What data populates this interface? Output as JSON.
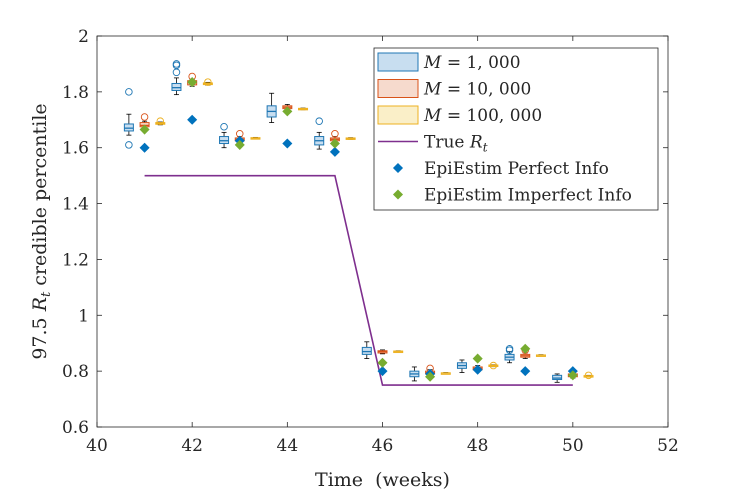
{
  "chart_data": {
    "type": "box+scatter+line",
    "xlabel": "Time  (weeks)",
    "ylabel": "97.5 R_t credible percentile",
    "ylabel_parts": {
      "pre": "97.5 ",
      "var": "R",
      "sub": "t",
      "post": " credible percentile"
    },
    "xlim": [
      40,
      52
    ],
    "ylim": [
      0.6,
      2.0
    ],
    "xticks": [
      "40",
      "42",
      "44",
      "46",
      "48",
      "50",
      "52"
    ],
    "yticks": [
      "0.6",
      "0.8",
      "1",
      "1.2",
      "1.4",
      "1.6",
      "1.8",
      "2"
    ],
    "grid": false,
    "legend_position": "top-right",
    "legend": [
      {
        "math": "M",
        "label": " = 1, 000",
        "kind": "box",
        "fill": "#c8def0",
        "stroke": "#1f77b4"
      },
      {
        "math": "M",
        "label": " = 10, 000",
        "kind": "box",
        "fill": "#f6dacd",
        "stroke": "#d95319"
      },
      {
        "math": "M",
        "label": " = 100, 000",
        "kind": "box",
        "fill": "#faefc8",
        "stroke": "#edb120"
      },
      {
        "text": "True ",
        "math": "R",
        "sub": "t",
        "kind": "line",
        "color": "#7e2f8e"
      },
      {
        "text": "EpiEstim Perfect Info",
        "kind": "diamond",
        "color": "#0072bd"
      },
      {
        "text": "EpiEstim Imperfect Info",
        "kind": "diamond",
        "color": "#77ac30"
      }
    ],
    "true_rt": {
      "name": "True R_t",
      "color": "#7e2f8e",
      "x": [
        41,
        45,
        46,
        50
      ],
      "y": [
        1.5,
        1.5,
        0.75,
        0.75
      ]
    },
    "box_series": [
      {
        "name": "M = 1,000",
        "stroke": "#1f77b4",
        "fill": "#c8def0",
        "median": "#1f77b4",
        "boxes": [
          {
            "x": 40.67,
            "q1": 1.66,
            "median": 1.67,
            "q3": 1.685,
            "lo": 1.645,
            "hi": 1.72,
            "outliers": [
              1.8,
              1.61
            ]
          },
          {
            "x": 41.67,
            "q1": 1.805,
            "median": 1.815,
            "q3": 1.83,
            "lo": 1.79,
            "hi": 1.85,
            "outliers": [
              1.9,
              1.895,
              1.87
            ]
          },
          {
            "x": 42.67,
            "q1": 1.615,
            "median": 1.625,
            "q3": 1.64,
            "lo": 1.6,
            "hi": 1.655,
            "outliers": [
              1.675
            ]
          },
          {
            "x": 43.67,
            "q1": 1.71,
            "median": 1.73,
            "q3": 1.75,
            "lo": 1.69,
            "hi": 1.795,
            "outliers": []
          },
          {
            "x": 44.67,
            "q1": 1.61,
            "median": 1.625,
            "q3": 1.64,
            "lo": 1.595,
            "hi": 1.655,
            "outliers": [
              1.695
            ]
          },
          {
            "x": 45.67,
            "q1": 0.86,
            "median": 0.87,
            "q3": 0.885,
            "lo": 0.845,
            "hi": 0.905,
            "outliers": []
          },
          {
            "x": 46.67,
            "q1": 0.78,
            "median": 0.79,
            "q3": 0.8,
            "lo": 0.765,
            "hi": 0.815,
            "outliers": []
          },
          {
            "x": 47.67,
            "q1": 0.81,
            "median": 0.82,
            "q3": 0.83,
            "lo": 0.795,
            "hi": 0.84,
            "outliers": []
          },
          {
            "x": 48.67,
            "q1": 0.84,
            "median": 0.85,
            "q3": 0.86,
            "lo": 0.83,
            "hi": 0.87,
            "outliers": [
              0.88,
              0.875
            ]
          },
          {
            "x": 49.67,
            "q1": 0.77,
            "median": 0.775,
            "q3": 0.785,
            "lo": 0.76,
            "hi": 0.79,
            "outliers": []
          }
        ]
      },
      {
        "name": "M = 10,000",
        "stroke": "#d95319",
        "fill": "#f6dacd",
        "median": "#d95319",
        "boxes": [
          {
            "x": 41.0,
            "q1": 1.675,
            "median": 1.68,
            "q3": 1.69,
            "lo": 1.665,
            "hi": 1.695,
            "outliers": [
              1.71
            ]
          },
          {
            "x": 42.0,
            "q1": 1.825,
            "median": 1.835,
            "q3": 1.84,
            "lo": 1.82,
            "hi": 1.845,
            "outliers": [
              1.855
            ]
          },
          {
            "x": 43.0,
            "q1": 1.625,
            "median": 1.63,
            "q3": 1.635,
            "lo": 1.62,
            "hi": 1.64,
            "outliers": [
              1.65
            ]
          },
          {
            "x": 44.0,
            "q1": 1.74,
            "median": 1.745,
            "q3": 1.75,
            "lo": 1.735,
            "hi": 1.755,
            "outliers": []
          },
          {
            "x": 45.0,
            "q1": 1.625,
            "median": 1.63,
            "q3": 1.635,
            "lo": 1.62,
            "hi": 1.64,
            "outliers": [
              1.65
            ]
          },
          {
            "x": 46.0,
            "q1": 0.865,
            "median": 0.87,
            "q3": 0.873,
            "lo": 0.862,
            "hi": 0.876,
            "outliers": []
          },
          {
            "x": 47.0,
            "q1": 0.79,
            "median": 0.795,
            "q3": 0.8,
            "lo": 0.785,
            "hi": 0.805,
            "outliers": [
              0.81
            ]
          },
          {
            "x": 48.0,
            "q1": 0.805,
            "median": 0.81,
            "q3": 0.815,
            "lo": 0.8,
            "hi": 0.82,
            "outliers": []
          },
          {
            "x": 49.0,
            "q1": 0.85,
            "median": 0.855,
            "q3": 0.86,
            "lo": 0.845,
            "hi": 0.865,
            "outliers": [
              0.875
            ]
          },
          {
            "x": 50.0,
            "q1": 0.78,
            "median": 0.785,
            "q3": 0.79,
            "lo": 0.775,
            "hi": 0.795,
            "outliers": []
          }
        ]
      },
      {
        "name": "M = 100,000",
        "stroke": "#edb120",
        "fill": "#faefc8",
        "median": "#edb120",
        "boxes": [
          {
            "x": 41.33,
            "q1": 1.684,
            "median": 1.687,
            "q3": 1.69,
            "lo": 1.682,
            "hi": 1.692,
            "outliers": [
              1.695
            ]
          },
          {
            "x": 42.33,
            "q1": 1.826,
            "median": 1.829,
            "q3": 1.832,
            "lo": 1.824,
            "hi": 1.834,
            "outliers": [
              1.835
            ]
          },
          {
            "x": 43.33,
            "q1": 1.632,
            "median": 1.634,
            "q3": 1.636,
            "lo": 1.631,
            "hi": 1.637,
            "outliers": []
          },
          {
            "x": 44.33,
            "q1": 1.737,
            "median": 1.739,
            "q3": 1.741,
            "lo": 1.736,
            "hi": 1.742,
            "outliers": []
          },
          {
            "x": 45.33,
            "q1": 1.631,
            "median": 1.633,
            "q3": 1.635,
            "lo": 1.63,
            "hi": 1.636,
            "outliers": []
          },
          {
            "x": 46.33,
            "q1": 0.869,
            "median": 0.871,
            "q3": 0.872,
            "lo": 0.868,
            "hi": 0.873,
            "outliers": []
          },
          {
            "x": 47.33,
            "q1": 0.791,
            "median": 0.793,
            "q3": 0.794,
            "lo": 0.79,
            "hi": 0.795,
            "outliers": []
          },
          {
            "x": 48.33,
            "q1": 0.818,
            "median": 0.82,
            "q3": 0.822,
            "lo": 0.816,
            "hi": 0.823,
            "outliers": [
              0.82
            ]
          },
          {
            "x": 49.33,
            "q1": 0.855,
            "median": 0.857,
            "q3": 0.858,
            "lo": 0.854,
            "hi": 0.859,
            "outliers": []
          },
          {
            "x": 50.33,
            "q1": 0.78,
            "median": 0.782,
            "q3": 0.784,
            "lo": 0.779,
            "hi": 0.785,
            "outliers": [
              0.785
            ]
          }
        ]
      }
    ],
    "scatter_series": [
      {
        "name": "EpiEstim Perfect Info",
        "color": "#0072bd",
        "x": [
          41,
          42,
          43,
          44,
          45,
          46,
          47,
          48,
          49,
          50
        ],
        "y": [
          1.6,
          1.7,
          1.625,
          1.615,
          1.585,
          0.8,
          0.79,
          0.805,
          0.8,
          0.8
        ]
      },
      {
        "name": "EpiEstim Imperfect Info",
        "color": "#77ac30",
        "x": [
          41,
          42,
          43,
          44,
          45,
          46,
          47,
          48,
          49,
          50
        ],
        "y": [
          1.665,
          1.835,
          1.61,
          1.73,
          1.615,
          0.83,
          0.78,
          0.845,
          0.88,
          0.785
        ]
      }
    ]
  }
}
